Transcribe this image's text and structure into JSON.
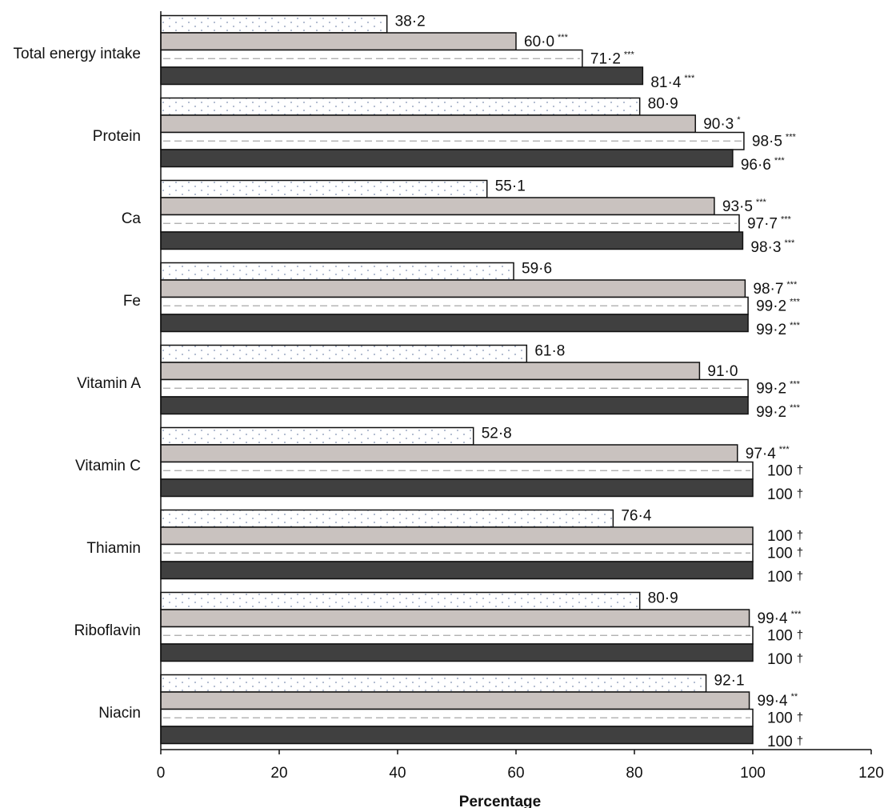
{
  "chart_data": {
    "type": "bar",
    "orientation": "horizontal",
    "categories": [
      "Total energy intake",
      "Protein",
      "Ca",
      "Fe",
      "Vitamin A",
      "Vitamin C",
      "Thiamin",
      "Riboflavin",
      "Niacin"
    ],
    "series": [
      {
        "pattern": "dotted",
        "values": [
          38.2,
          80.9,
          55.1,
          59.6,
          61.8,
          52.8,
          76.4,
          80.9,
          92.1
        ],
        "labels": [
          "38·2",
          "80·9",
          "55·1",
          "59·6",
          "61·8",
          "52·8",
          "76·4",
          "80·9",
          "92·1"
        ],
        "sig": [
          "",
          "",
          "",
          "",
          "",
          "",
          "",
          "",
          ""
        ]
      },
      {
        "pattern": "light-grey",
        "values": [
          60.0,
          90.3,
          93.5,
          98.7,
          91.0,
          97.4,
          100,
          99.4,
          99.4
        ],
        "labels": [
          "60·0",
          "90·3",
          "93·5",
          "98·7",
          "91·0",
          "97·4",
          "100",
          "99·4",
          "99·4"
        ],
        "sig": [
          "***",
          "*",
          "***",
          "***",
          "",
          "***",
          "†",
          "***",
          "**"
        ]
      },
      {
        "pattern": "white-dashed",
        "values": [
          71.2,
          98.5,
          97.7,
          99.2,
          99.2,
          100,
          100,
          100,
          100
        ],
        "labels": [
          "71·2",
          "98·5",
          "97·7",
          "99·2",
          "99·2",
          "100",
          "100",
          "100",
          "100"
        ],
        "sig": [
          "***",
          "***",
          "***",
          "***",
          "***",
          "†",
          "†",
          "†",
          "†"
        ]
      },
      {
        "pattern": "dark",
        "values": [
          81.4,
          96.6,
          98.3,
          99.2,
          99.2,
          100,
          100,
          100,
          100
        ],
        "labels": [
          "81·4",
          "96·6",
          "98·3",
          "99·2",
          "99·2",
          "100",
          "100",
          "100",
          "100"
        ],
        "sig": [
          "***",
          "***",
          "***",
          "***",
          "***",
          "†",
          "†",
          "†",
          "†"
        ]
      }
    ],
    "xlabel": "Percentage",
    "xlim": [
      0,
      120
    ],
    "xticks": [
      "0",
      "20",
      "40",
      "60",
      "80",
      "100",
      "120"
    ],
    "grid": false,
    "colors": {
      "dotted_fill": "#ffffff",
      "dotted_dots": "#7f8fb0",
      "light_grey": "#c9c2bf",
      "white": "#ffffff",
      "dashed_line": "#a8a8a8",
      "dark": "#404040",
      "outline": "#111111"
    }
  }
}
